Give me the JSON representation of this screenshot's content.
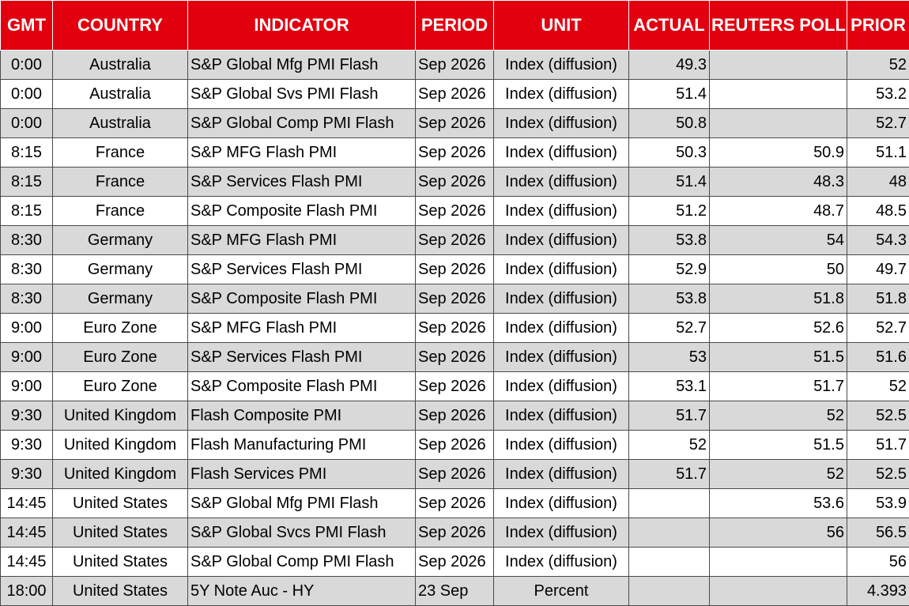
{
  "headers": [
    "GMT",
    "COUNTRY",
    "INDICATOR",
    "PERIOD",
    "UNIT",
    "ACTUAL",
    "REUTERS POLL",
    "PRIOR"
  ],
  "rows": [
    [
      "0:00",
      "Australia",
      "S&P Global Mfg PMI Flash",
      "Sep 2026",
      "Index (diffusion)",
      "49.3",
      "",
      "52"
    ],
    [
      "0:00",
      "Australia",
      "S&P Global Svs PMI Flash",
      "Sep 2026",
      "Index (diffusion)",
      "51.4",
      "",
      "53.2"
    ],
    [
      "0:00",
      "Australia",
      "S&P Global Comp PMI Flash",
      "Sep 2026",
      "Index (diffusion)",
      "50.8",
      "",
      "52.7"
    ],
    [
      "8:15",
      "France",
      "S&P MFG Flash PMI",
      "Sep 2026",
      "Index (diffusion)",
      "50.3",
      "50.9",
      "51.1"
    ],
    [
      "8:15",
      "France",
      "S&P Services Flash PMI",
      "Sep 2026",
      "Index (diffusion)",
      "51.4",
      "48.3",
      "48"
    ],
    [
      "8:15",
      "France",
      "S&P Composite Flash PMI",
      "Sep 2026",
      "Index (diffusion)",
      "51.2",
      "48.7",
      "48.5"
    ],
    [
      "8:30",
      "Germany",
      "S&P MFG Flash PMI",
      "Sep 2026",
      "Index (diffusion)",
      "53.8",
      "54",
      "54.3"
    ],
    [
      "8:30",
      "Germany",
      "S&P Services Flash PMI",
      "Sep 2026",
      "Index (diffusion)",
      "52.9",
      "50",
      "49.7"
    ],
    [
      "8:30",
      "Germany",
      "S&P Composite Flash PMI",
      "Sep 2026",
      "Index (diffusion)",
      "53.8",
      "51.8",
      "51.8"
    ],
    [
      "9:00",
      "Euro Zone",
      "S&P MFG Flash PMI",
      "Sep 2026",
      "Index (diffusion)",
      "52.7",
      "52.6",
      "52.7"
    ],
    [
      "9:00",
      "Euro Zone",
      "S&P Services Flash PMI",
      "Sep 2026",
      "Index (diffusion)",
      "53",
      "51.5",
      "51.6"
    ],
    [
      "9:00",
      "Euro Zone",
      "S&P Composite Flash PMI",
      "Sep 2026",
      "Index (diffusion)",
      "53.1",
      "51.7",
      "52"
    ],
    [
      "9:30",
      "United Kingdom",
      "Flash Composite PMI",
      "Sep 2026",
      "Index (diffusion)",
      "51.7",
      "52",
      "52.5"
    ],
    [
      "9:30",
      "United Kingdom",
      "Flash Manufacturing PMI",
      "Sep 2026",
      "Index (diffusion)",
      "52",
      "51.5",
      "51.7"
    ],
    [
      "9:30",
      "United Kingdom",
      "Flash Services PMI",
      "Sep 2026",
      "Index (diffusion)",
      "51.7",
      "52",
      "52.5"
    ],
    [
      "14:45",
      "United States",
      "S&P Global Mfg PMI Flash",
      "Sep 2026",
      "Index (diffusion)",
      "",
      "53.6",
      "53.9"
    ],
    [
      "14:45",
      "United States",
      "S&P Global Svcs PMI Flash",
      "Sep 2026",
      "Index (diffusion)",
      "",
      "56",
      "56.5"
    ],
    [
      "14:45",
      "United States",
      "S&P Global Comp PMI Flash",
      "Sep 2026",
      "Index (diffusion)",
      "",
      "",
      "56"
    ],
    [
      "18:00",
      "United States",
      "5Y Note Auc - HY",
      "23 Sep",
      "Percent",
      "",
      "",
      "4.393"
    ]
  ],
  "colors": {
    "header_bg": "#e2000f",
    "header_text": "#ffffff",
    "row_shaded": "#d9d9d9",
    "row_plain": "#ffffff"
  }
}
